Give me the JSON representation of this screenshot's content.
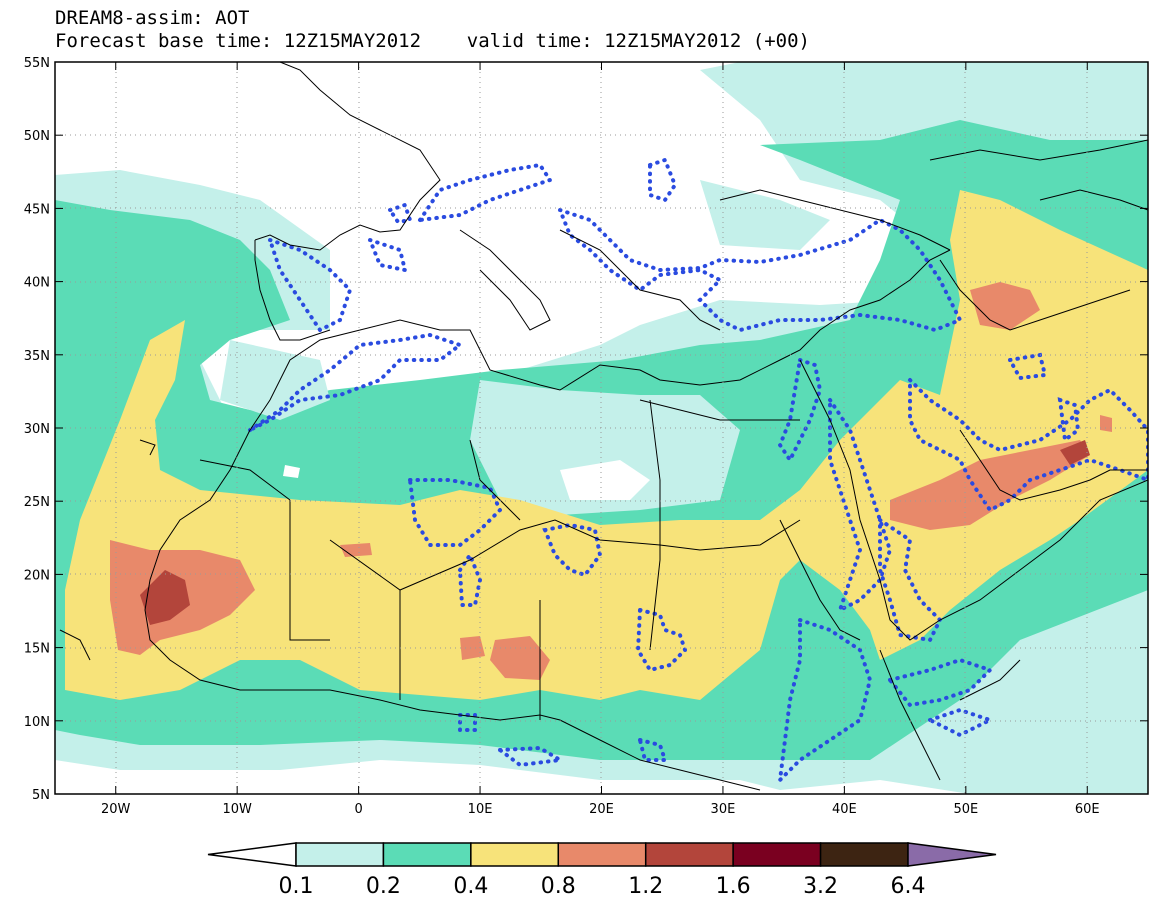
{
  "title": {
    "line1": "DREAM8-assim: AOT",
    "line2": "Forecast base time: 12Z15MAY2012    valid time: 12Z15MAY2012 (+00)"
  },
  "axes": {
    "lat_labels": [
      "55N",
      "50N",
      "45N",
      "40N",
      "35N",
      "30N",
      "25N",
      "20N",
      "15N",
      "10N",
      "5N"
    ],
    "lat_values": [
      55,
      50,
      45,
      40,
      35,
      30,
      25,
      20,
      15,
      10,
      5
    ],
    "lon_labels": [
      "20W",
      "10W",
      "0",
      "10E",
      "20E",
      "30E",
      "40E",
      "50E",
      "60E"
    ],
    "lon_values": [
      -20,
      -10,
      0,
      10,
      20,
      30,
      40,
      50,
      60
    ],
    "lon_range": [
      -25,
      65
    ],
    "lat_range": [
      5,
      55
    ]
  },
  "colorbar": {
    "levels": [
      "0.1",
      "0.2",
      "0.4",
      "0.8",
      "1.2",
      "1.6",
      "3.2",
      "6.4"
    ],
    "colors": [
      "#ffffff",
      "#c4f0ea",
      "#5bdcb6",
      "#f7e37a",
      "#e8896a",
      "#b3453b",
      "#7a0020",
      "#3d2412",
      "#8a6ba8"
    ]
  },
  "colors": {
    "land_line": "#000000",
    "dotted_contour": "#2a4be0",
    "grid": "#9a9a9a"
  }
}
